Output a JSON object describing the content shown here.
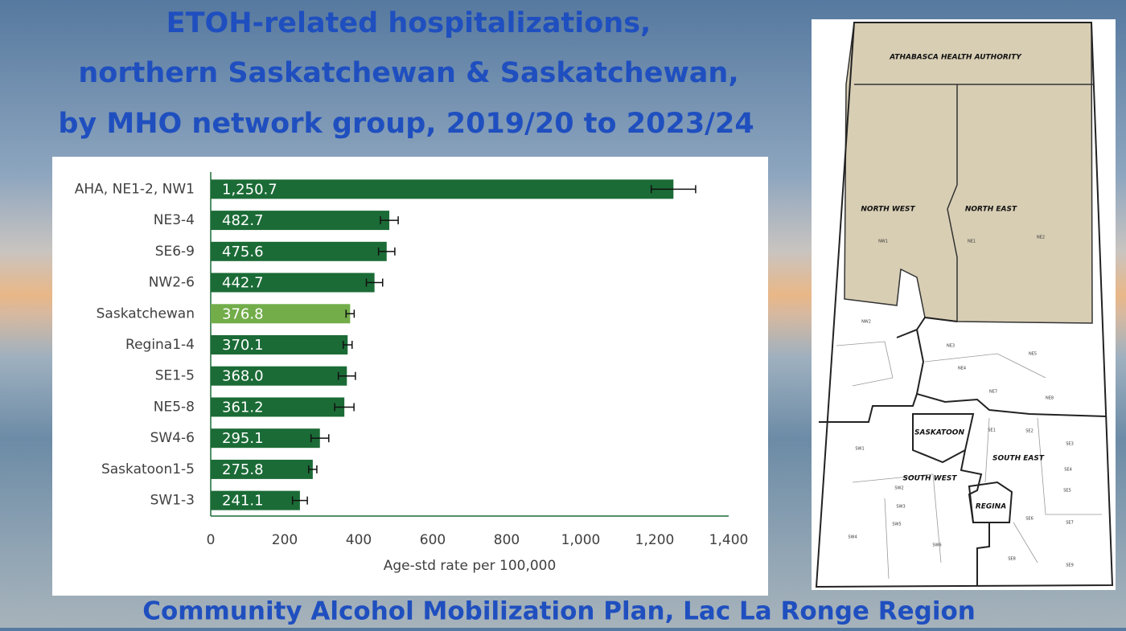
{
  "chart_data": {
    "type": "bar",
    "orientation": "horizontal",
    "title": [
      "ETOH-related hospitalizations,",
      "northern Saskatchewan & Saskatchewan,",
      "by MHO network group, 2019/20 to 2023/24"
    ],
    "categories": [
      "AHA, NE1-2, NW1",
      "NE3-4",
      "SE6-9",
      "NW2-6",
      "Saskatchewan",
      "Regina1-4",
      "SE1-5",
      "NE5-8",
      "SW4-6",
      "Saskatoon1-5",
      "SW1-3"
    ],
    "values": [
      1250.7,
      482.7,
      475.6,
      442.7,
      376.8,
      370.1,
      368.0,
      361.2,
      295.1,
      275.8,
      241.1
    ],
    "value_labels": [
      "1,250.7",
      "482.7",
      "475.6",
      "442.7",
      "376.8",
      "370.1",
      "368.0",
      "361.2",
      "295.1",
      "275.8",
      "241.1"
    ],
    "errors": [
      60,
      24,
      22,
      22,
      11,
      12,
      23,
      26,
      24,
      11,
      20
    ],
    "colors": [
      "#1b6b36",
      "#1b6b36",
      "#1b6b36",
      "#1b6b36",
      "#72ad4a",
      "#1b6b36",
      "#1b6b36",
      "#1b6b36",
      "#1b6b36",
      "#1b6b36",
      "#1b6b36"
    ],
    "xlim": [
      0,
      1400
    ],
    "xticks": [
      0,
      200,
      400,
      600,
      800,
      {
        "value": 1000,
        "label": "1,000"
      },
      {
        "value": 1200,
        "label": "1,200"
      },
      {
        "value": 1400,
        "label": "1,400"
      }
    ],
    "xlabel": "Age-std rate per 100,000",
    "grid": false
  },
  "footer": "Community Alcohol Mobilization Plan, Lac La Ronge Region",
  "map": {
    "regions": [
      "ATHABASCA HEALTH AUTHORITY",
      "NORTH WEST",
      "NORTH EAST",
      "SASKATOON",
      "SOUTH EAST",
      "SOUTH WEST",
      "REGINA"
    ],
    "districts": [
      "NW1",
      "NE1",
      "NE2",
      "NW2",
      "NE3",
      "NE5",
      "NE4",
      "NE7",
      "NE8",
      "SE1",
      "SE2",
      "SE3",
      "SE4",
      "SE5",
      "SE6",
      "SE7",
      "SE8",
      "SE9",
      "SW1",
      "SW2",
      "SW3",
      "SW4",
      "SW5",
      "SW6"
    ]
  }
}
